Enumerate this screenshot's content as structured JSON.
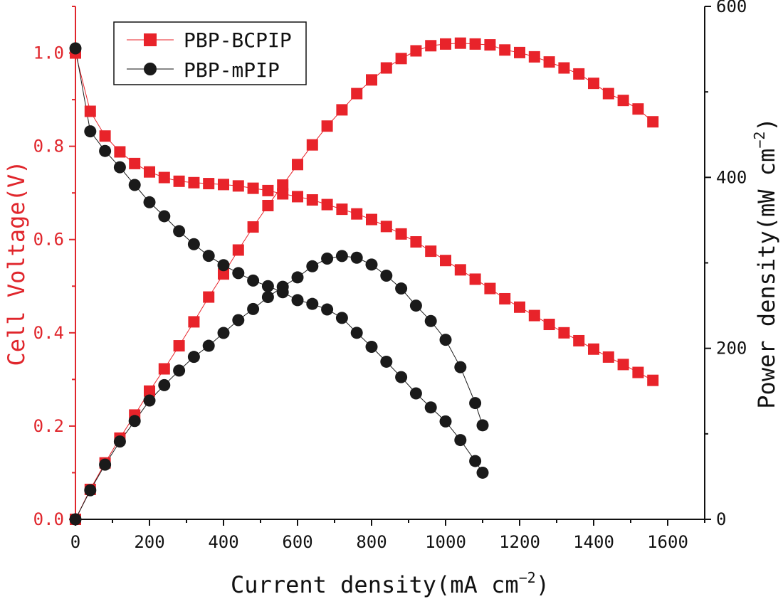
{
  "chart_data": {
    "type": "scatter",
    "title": "",
    "xlabel": {
      "base": "Current density(mA cm",
      "sup": "−2",
      "tail": ")"
    },
    "ylabel_left": "Cell Voltage(V)",
    "ylabel_right": {
      "base": "Power density(mW cm",
      "sup": "−2",
      "tail": ")"
    },
    "xlim": [
      0,
      1700
    ],
    "ylim_left": [
      0,
      1.1
    ],
    "ylim_right": [
      0,
      600
    ],
    "x_ticks": [
      "0",
      "200",
      "400",
      "600",
      "800",
      "1000",
      "1200",
      "1400",
      "1600"
    ],
    "y_left_ticks": [
      "0.0",
      "0.2",
      "0.4",
      "0.6",
      "0.8",
      "1.0"
    ],
    "y_right_ticks": [
      "0",
      "200",
      "400",
      "600"
    ],
    "legend_position": "top-left",
    "colors": {
      "left_axis": "#e0262c",
      "right_axis": "#111111",
      "series_a": "#e8232a",
      "series_b": "#1a1a1a"
    },
    "series": [
      {
        "name": "PBP-BCPIP",
        "marker": "square",
        "color": "#e8232a",
        "polarization": {
          "x": [
            0,
            40,
            80,
            120,
            160,
            200,
            240,
            280,
            320,
            360,
            400,
            440,
            480,
            520,
            560,
            600,
            640,
            680,
            720,
            760,
            800,
            840,
            880,
            920,
            960,
            1000,
            1040,
            1080,
            1120,
            1160,
            1200,
            1240,
            1280,
            1320,
            1360,
            1400,
            1440,
            1480,
            1520,
            1560
          ],
          "v": [
            1.0,
            0.875,
            0.822,
            0.788,
            0.763,
            0.745,
            0.733,
            0.725,
            0.722,
            0.72,
            0.718,
            0.715,
            0.71,
            0.705,
            0.698,
            0.692,
            0.685,
            0.675,
            0.665,
            0.655,
            0.643,
            0.628,
            0.612,
            0.595,
            0.575,
            0.555,
            0.535,
            0.515,
            0.495,
            0.473,
            0.455,
            0.437,
            0.418,
            0.4,
            0.383,
            0.365,
            0.348,
            0.332,
            0.315,
            0.298
          ]
        },
        "power": {
          "x": [
            0,
            40,
            80,
            120,
            160,
            200,
            240,
            280,
            320,
            360,
            400,
            440,
            480,
            520,
            560,
            600,
            640,
            680,
            720,
            760,
            800,
            840,
            880,
            920,
            960,
            1000,
            1040,
            1080,
            1120,
            1160,
            1200,
            1240,
            1280,
            1320,
            1360,
            1400,
            1440,
            1480,
            1520,
            1560
          ],
          "p": [
            0,
            35,
            66,
            95,
            122,
            150,
            176,
            203,
            231,
            260,
            287,
            315,
            342,
            367,
            391,
            415,
            438,
            460,
            479,
            498,
            514,
            528,
            539,
            548,
            554,
            556,
            557,
            556,
            555,
            549,
            546,
            541,
            535,
            528,
            521,
            510,
            498,
            490,
            480,
            465
          ]
        }
      },
      {
        "name": "PBP-mPIP",
        "marker": "circle",
        "color": "#1a1a1a",
        "polarization": {
          "x": [
            0,
            40,
            80,
            120,
            160,
            200,
            240,
            280,
            320,
            360,
            400,
            440,
            480,
            520,
            560,
            600,
            640,
            680,
            720,
            760,
            800,
            840,
            880,
            920,
            960,
            1000,
            1040,
            1080,
            1100
          ],
          "v": [
            1.01,
            0.832,
            0.79,
            0.755,
            0.717,
            0.68,
            0.65,
            0.618,
            0.59,
            0.565,
            0.545,
            0.528,
            0.512,
            0.5,
            0.487,
            0.47,
            0.462,
            0.45,
            0.432,
            0.4,
            0.37,
            0.338,
            0.305,
            0.27,
            0.24,
            0.21,
            0.17,
            0.125,
            0.1
          ]
        },
        "power": {
          "x": [
            0,
            40,
            80,
            120,
            160,
            200,
            240,
            280,
            320,
            360,
            400,
            440,
            480,
            520,
            560,
            600,
            640,
            680,
            720,
            760,
            800,
            840,
            880,
            920,
            960,
            1000,
            1040,
            1080,
            1100
          ],
          "p": [
            0,
            34,
            64,
            91,
            115,
            139,
            157,
            174,
            190,
            203,
            218,
            233,
            246,
            260,
            272,
            283,
            296,
            305,
            308,
            306,
            298,
            285,
            270,
            250,
            232,
            210,
            178,
            136,
            110
          ]
        }
      }
    ]
  }
}
